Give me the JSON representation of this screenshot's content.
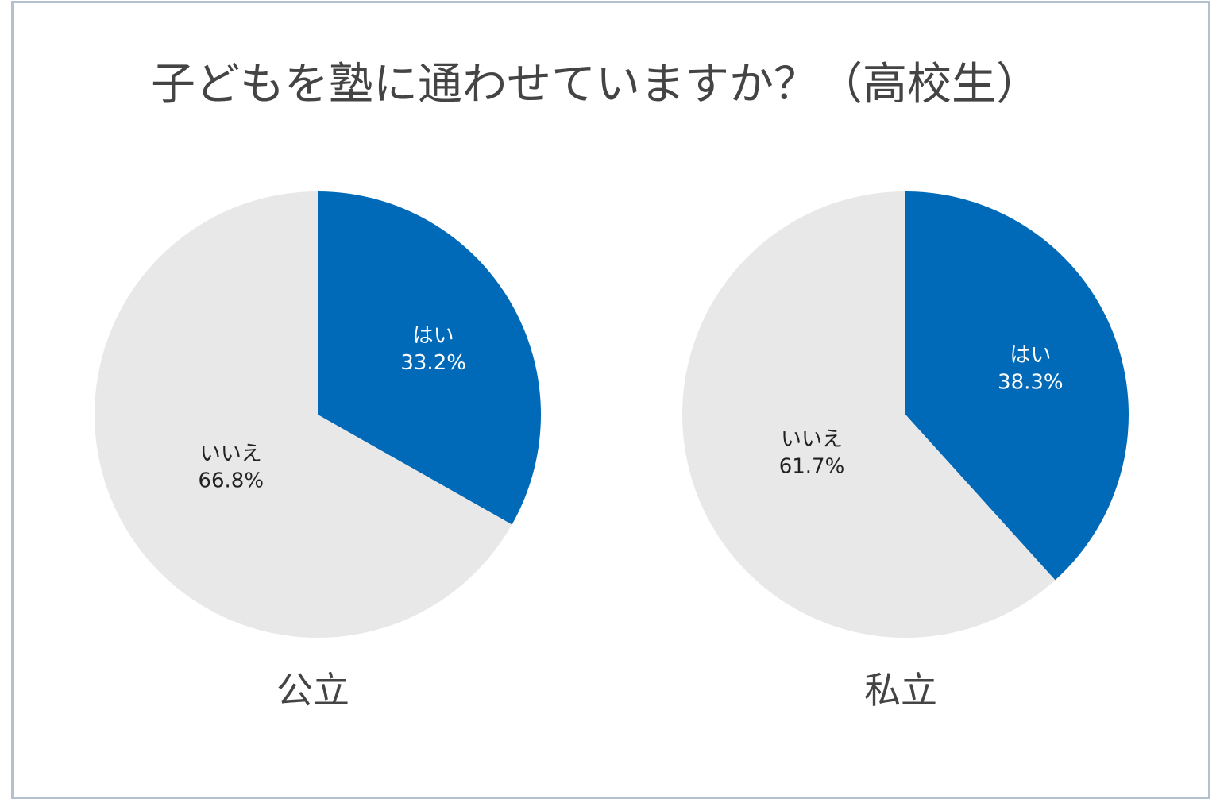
{
  "chart_data": {
    "type": "pie",
    "title": "子どもを塾に通わせていますか？（高校生）",
    "colors": {
      "はい": "#006ab8",
      "いいえ": "#e8e8e8",
      "title": "#444444",
      "border": "#b4c0cd"
    },
    "charts": [
      {
        "name": "公立",
        "slices": [
          {
            "label": "はい",
            "value": 33.2,
            "display": "33.2%"
          },
          {
            "label": "いいえ",
            "value": 66.8,
            "display": "66.8%"
          }
        ]
      },
      {
        "name": "私立",
        "slices": [
          {
            "label": "はい",
            "value": 38.3,
            "display": "38.3%"
          },
          {
            "label": "いいえ",
            "value": 61.7,
            "display": "61.7%"
          }
        ]
      }
    ]
  }
}
